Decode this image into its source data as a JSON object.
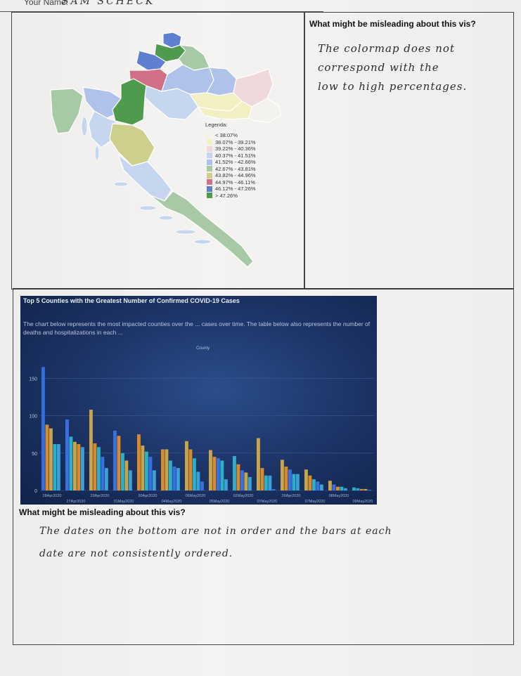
{
  "header": {
    "name_label": "Your Name:",
    "name_value": "SAM SCHECK"
  },
  "section1": {
    "question": "What might be misleading about this vis?",
    "answer_lines": [
      "The colormap does not",
      "correspond with the",
      "low to high percentages."
    ]
  },
  "map": {
    "legend_title": "Legenda:",
    "legend": [
      {
        "label": "< 38.07%",
        "color": "#f3f2ee"
      },
      {
        "label": "38.07% - 39.21%",
        "color": "#f2efc2"
      },
      {
        "label": "39.22% - 40.36%",
        "color": "#efd9dc"
      },
      {
        "label": "40.37% - 41.51%",
        "color": "#c6d6ee"
      },
      {
        "label": "41.52% - 42.66%",
        "color": "#aec2ea"
      },
      {
        "label": "42.67% - 43.81%",
        "color": "#a8c9a6"
      },
      {
        "label": "43.82% - 44.96%",
        "color": "#cfcf8c"
      },
      {
        "label": "44.97% - 46.11%",
        "color": "#d06f86"
      },
      {
        "label": "46.12% - 47.26%",
        "color": "#5f7fd0"
      },
      {
        "label": "> 47.26%",
        "color": "#4f9a4d"
      }
    ]
  },
  "section2": {
    "question": "What might be misleading about this vis?",
    "answer_lines": [
      "The dates on the bottom are not in order and the bars at each",
      "date are not consistently ordered."
    ]
  },
  "chart_data": {
    "type": "bar",
    "title": "Top 5 Counties with the Greatest Number of Confirmed COVID-19 Cases",
    "description": "The chart below represents the most impacted counties over the ... cases over time. The table below also represents the number of deaths and hospitalizations in each ...",
    "legend_title": "County",
    "ylim": [
      0,
      170
    ],
    "yticks": [
      0,
      50,
      100,
      150
    ],
    "categories": [
      "28Apr2020",
      "27Apr2020",
      "29Apr2020",
      "01May2020",
      "30Apr2020",
      "04May2020",
      "06May2020",
      "05May2020",
      "02May2020",
      "07May2020",
      "26Apr2020",
      "07May2020",
      "08May2020",
      "09May2020"
    ],
    "x_tick_labels": [
      "28Apr2020",
      "27Apr2020",
      "29Apr2020",
      "01May2020",
      "30Apr2020",
      "04May2020",
      "06May2020",
      "05May2020",
      "02May2020",
      "07May2020",
      "26Apr2020",
      "07May2020",
      "08May2020",
      "09May2020"
    ],
    "bar_groups": [
      [
        {
          "v": 165,
          "c": "#2f6fe0"
        },
        {
          "v": 88,
          "c": "#d98a2a"
        },
        {
          "v": 83,
          "c": "#c8a54a"
        },
        {
          "v": 62,
          "c": "#2bb0c8"
        },
        {
          "v": 62,
          "c": "#3aa0d8"
        }
      ],
      [
        {
          "v": 95,
          "c": "#3a6fe0"
        },
        {
          "v": 72,
          "c": "#2bb0c8"
        },
        {
          "v": 65,
          "c": "#c8a54a"
        },
        {
          "v": 62,
          "c": "#d98a2a"
        },
        {
          "v": 58,
          "c": "#3aa0d8"
        }
      ],
      [
        {
          "v": 108,
          "c": "#c8a54a"
        },
        {
          "v": 63,
          "c": "#d98a2a"
        },
        {
          "v": 58,
          "c": "#2bb0c8"
        },
        {
          "v": 45,
          "c": "#3a6fe0"
        },
        {
          "v": 30,
          "c": "#3aa0d8"
        }
      ],
      [
        {
          "v": 80,
          "c": "#3a6fe0"
        },
        {
          "v": 73,
          "c": "#d98a2a"
        },
        {
          "v": 50,
          "c": "#2bb0c8"
        },
        {
          "v": 40,
          "c": "#c8a54a"
        },
        {
          "v": 27,
          "c": "#3aa0d8"
        }
      ],
      [
        {
          "v": 75,
          "c": "#d98a2a"
        },
        {
          "v": 60,
          "c": "#c8a54a"
        },
        {
          "v": 52,
          "c": "#2bb0c8"
        },
        {
          "v": 45,
          "c": "#3a6fe0"
        },
        {
          "v": 27,
          "c": "#3aa0d8"
        }
      ],
      [
        {
          "v": 55,
          "c": "#d98a2a"
        },
        {
          "v": 55,
          "c": "#c8a54a"
        },
        {
          "v": 40,
          "c": "#2bb0c8"
        },
        {
          "v": 32,
          "c": "#3a6fe0"
        },
        {
          "v": 30,
          "c": "#3aa0d8"
        }
      ],
      [
        {
          "v": 66,
          "c": "#c8a54a"
        },
        {
          "v": 55,
          "c": "#d98a2a"
        },
        {
          "v": 43,
          "c": "#2bb0c8"
        },
        {
          "v": 25,
          "c": "#3aa0d8"
        },
        {
          "v": 12,
          "c": "#3a6fe0"
        }
      ],
      [
        {
          "v": 54,
          "c": "#c8a54a"
        },
        {
          "v": 45,
          "c": "#d98a2a"
        },
        {
          "v": 43,
          "c": "#3a6fe0"
        },
        {
          "v": 40,
          "c": "#2bb0c8"
        },
        {
          "v": 15,
          "c": "#3aa0d8"
        }
      ],
      [
        {
          "v": 46,
          "c": "#2bb0c8"
        },
        {
          "v": 35,
          "c": "#d98a2a"
        },
        {
          "v": 27,
          "c": "#3a6fe0"
        },
        {
          "v": 24,
          "c": "#c8a54a"
        },
        {
          "v": 18,
          "c": "#3aa0d8"
        }
      ],
      [
        {
          "v": 70,
          "c": "#c8a54a"
        },
        {
          "v": 30,
          "c": "#d98a2a"
        },
        {
          "v": 20,
          "c": "#2bb0c8"
        },
        {
          "v": 20,
          "c": "#3aa0d8"
        },
        {
          "v": 2,
          "c": "#3a6fe0"
        }
      ],
      [
        {
          "v": 41,
          "c": "#c8a54a"
        },
        {
          "v": 32,
          "c": "#d98a2a"
        },
        {
          "v": 28,
          "c": "#3a6fe0"
        },
        {
          "v": 22,
          "c": "#2bb0c8"
        },
        {
          "v": 22,
          "c": "#3aa0d8"
        }
      ],
      [
        {
          "v": 28,
          "c": "#c8a54a"
        },
        {
          "v": 20,
          "c": "#d98a2a"
        },
        {
          "v": 15,
          "c": "#2bb0c8"
        },
        {
          "v": 12,
          "c": "#3a6fe0"
        },
        {
          "v": 8,
          "c": "#3aa0d8"
        }
      ],
      [
        {
          "v": 13,
          "c": "#c8a54a"
        },
        {
          "v": 8,
          "c": "#3a6fe0"
        },
        {
          "v": 5,
          "c": "#d98a2a"
        },
        {
          "v": 5,
          "c": "#2bb0c8"
        },
        {
          "v": 3,
          "c": "#3aa0d8"
        }
      ],
      [
        {
          "v": 4,
          "c": "#2bb0c8"
        },
        {
          "v": 3,
          "c": "#3aa0d8"
        },
        {
          "v": 2,
          "c": "#d98a2a"
        },
        {
          "v": 2,
          "c": "#c8a54a"
        },
        {
          "v": 1,
          "c": "#3a6fe0"
        }
      ]
    ]
  }
}
